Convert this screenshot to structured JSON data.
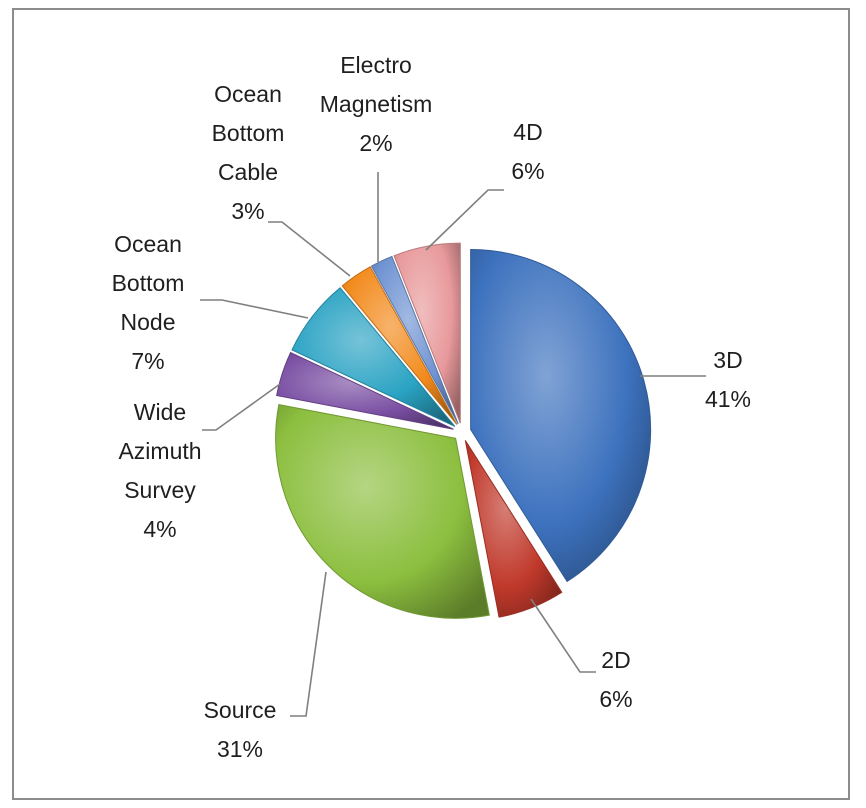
{
  "chart_data": {
    "type": "pie",
    "title": "",
    "slices": [
      {
        "label": "3D",
        "value": 41,
        "pct_label": "41%",
        "color": "#3d72be"
      },
      {
        "label": "2D",
        "value": 6,
        "pct_label": "6%",
        "color": "#c0392b"
      },
      {
        "label": "Source",
        "value": 31,
        "pct_label": "31%",
        "color": "#8cbf3f"
      },
      {
        "label": "Wide Azimuth Survey",
        "value": 4,
        "pct_label": "4%",
        "color": "#7a4fa3"
      },
      {
        "label": "Ocean Bottom Node",
        "value": 7,
        "pct_label": "7%",
        "color": "#2aa3c3"
      },
      {
        "label": "Ocean Bottom Cable",
        "value": 3,
        "pct_label": "3%",
        "color": "#f28a1c"
      },
      {
        "label": "Electro Magnetism",
        "value": 2,
        "pct_label": "2%",
        "color": "#6f93d2"
      },
      {
        "label": "4D",
        "value": 6,
        "pct_label": "6%",
        "color": "#e8999b"
      }
    ],
    "legend": "none",
    "data_labels": "category name and percentage, outside with leader lines"
  }
}
